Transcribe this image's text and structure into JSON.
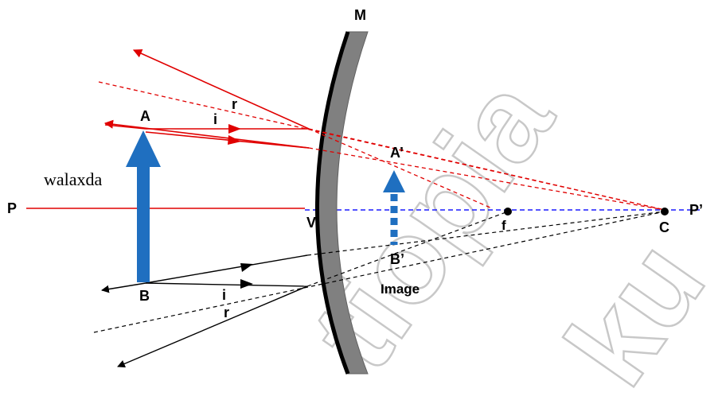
{
  "labels": {
    "mirror": "M",
    "object_top": "A",
    "object_bottom": "B",
    "object_caption": "walaxda",
    "image_top": "A’",
    "image_bottom": "B’",
    "image_caption": "Image",
    "axis_left": "P",
    "axis_right": "P’",
    "pole": "V",
    "focus": "f",
    "center": "C",
    "incidence_top": "i",
    "reflection_top": "r",
    "incidence_bottom": "i",
    "reflection_bottom": "r"
  },
  "watermark": {
    "word_1": "tiopia",
    "word_2": "ku"
  },
  "colors": {
    "principal_axis": "#e00000",
    "virtual_axis": "#1a1aff",
    "ray_top": "#e00000",
    "ray_bottom": "#000000",
    "object_arrow": "#1f6fc0",
    "mirror_fill": "#808080",
    "mirror_edge": "#000000"
  }
}
